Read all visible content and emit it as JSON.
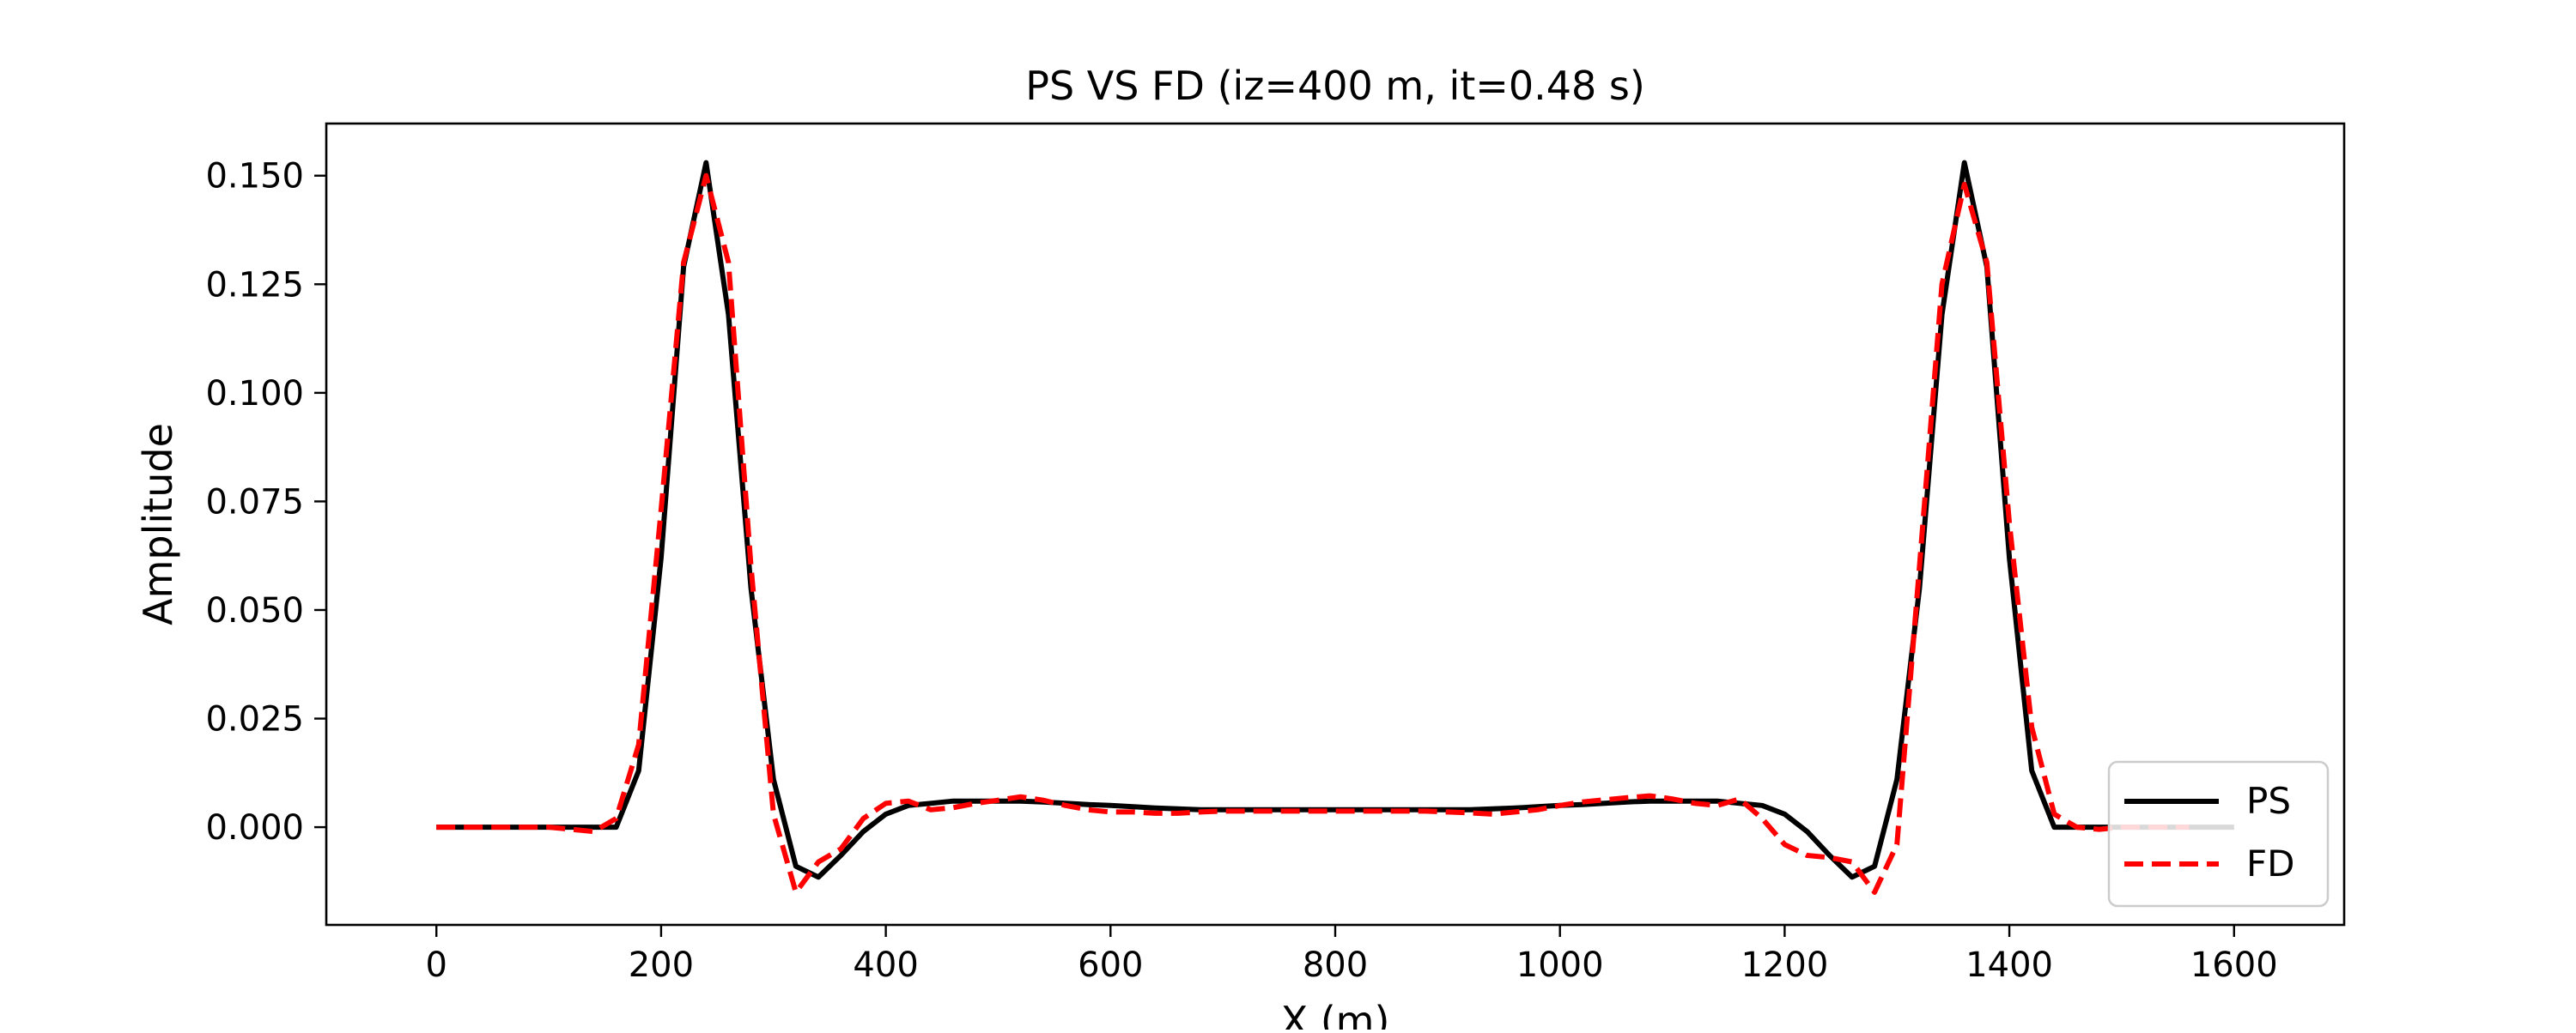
{
  "chart_data": {
    "type": "line",
    "title": "PS VS FD (iz=400 m, it=0.48 s)",
    "xlabel": "X (m)",
    "ylabel": "Amplitude",
    "xlim": [
      -98,
      1698
    ],
    "ylim": [
      -0.0225,
      0.162
    ],
    "xticks": [
      0,
      200,
      400,
      600,
      800,
      1000,
      1200,
      1400,
      1600
    ],
    "yticks": [
      0.0,
      0.025,
      0.05,
      0.075,
      0.1,
      0.125,
      0.15
    ],
    "xtick_labels": [
      "0",
      "200",
      "400",
      "600",
      "800",
      "1000",
      "1200",
      "1400",
      "1600"
    ],
    "ytick_labels": [
      "0.000",
      "0.025",
      "0.050",
      "0.075",
      "0.100",
      "0.125",
      "0.150"
    ],
    "grid": false,
    "legend_position": "bottom-right",
    "series": [
      {
        "name": "PS",
        "color": "#000000",
        "style": "solid",
        "x": [
          0,
          20,
          40,
          60,
          80,
          100,
          120,
          140,
          160,
          180,
          200,
          220,
          240,
          260,
          280,
          300,
          320,
          340,
          360,
          380,
          400,
          420,
          440,
          460,
          480,
          500,
          520,
          540,
          560,
          580,
          600,
          620,
          640,
          660,
          680,
          700,
          720,
          740,
          760,
          780,
          800,
          820,
          840,
          860,
          880,
          900,
          920,
          940,
          960,
          980,
          1000,
          1020,
          1040,
          1060,
          1080,
          1100,
          1120,
          1140,
          1160,
          1180,
          1200,
          1220,
          1240,
          1260,
          1280,
          1300,
          1320,
          1340,
          1360,
          1380,
          1400,
          1420,
          1440,
          1460,
          1480,
          1500,
          1520,
          1540,
          1560,
          1580,
          1600
        ],
        "y": [
          0.0,
          0.0,
          0.0,
          0.0,
          0.0,
          0.0,
          0.0,
          0.0,
          0.0,
          0.013,
          0.062,
          0.129,
          0.153,
          0.118,
          0.055,
          0.011,
          -0.009,
          -0.0115,
          -0.0065,
          -0.001,
          0.003,
          0.005,
          0.0055,
          0.006,
          0.006,
          0.006,
          0.006,
          0.0058,
          0.0055,
          0.0052,
          0.005,
          0.0047,
          0.0044,
          0.0042,
          0.004,
          0.004,
          0.004,
          0.004,
          0.004,
          0.004,
          0.004,
          0.004,
          0.004,
          0.004,
          0.004,
          0.004,
          0.004,
          0.0042,
          0.0044,
          0.0047,
          0.005,
          0.0052,
          0.0055,
          0.0058,
          0.006,
          0.006,
          0.006,
          0.006,
          0.0055,
          0.005,
          0.003,
          -0.001,
          -0.0065,
          -0.0115,
          -0.009,
          0.011,
          0.055,
          0.118,
          0.153,
          0.129,
          0.062,
          0.013,
          0.0,
          0.0,
          0.0,
          0.0,
          0.0,
          0.0,
          0.0,
          0.0,
          0.0
        ]
      },
      {
        "name": "FD",
        "color": "#ff0000",
        "style": "dashed",
        "x": [
          0,
          20,
          40,
          60,
          80,
          100,
          120,
          140,
          160,
          180,
          200,
          220,
          240,
          260,
          280,
          300,
          320,
          340,
          360,
          380,
          400,
          420,
          440,
          460,
          480,
          500,
          520,
          540,
          560,
          580,
          600,
          620,
          640,
          660,
          680,
          700,
          720,
          740,
          760,
          780,
          800,
          820,
          840,
          860,
          880,
          900,
          920,
          940,
          960,
          980,
          1000,
          1020,
          1040,
          1060,
          1080,
          1100,
          1120,
          1140,
          1160,
          1180,
          1200,
          1220,
          1240,
          1260,
          1280,
          1300,
          1320,
          1340,
          1360,
          1380,
          1400,
          1420,
          1440,
          1460,
          1480,
          1500,
          1520,
          1540,
          1560
        ],
        "y": [
          0.0,
          0.0,
          0.0,
          0.0,
          0.0,
          0.0,
          -0.0005,
          -0.001,
          0.002,
          0.019,
          0.073,
          0.13,
          0.15,
          0.13,
          0.06,
          0.003,
          -0.015,
          -0.008,
          -0.005,
          0.002,
          0.0055,
          0.006,
          0.004,
          0.0045,
          0.0055,
          0.0062,
          0.007,
          0.0062,
          0.005,
          0.004,
          0.0035,
          0.0035,
          0.0032,
          0.0032,
          0.0035,
          0.0037,
          0.0037,
          0.0037,
          0.0037,
          0.0037,
          0.0037,
          0.0037,
          0.0037,
          0.0037,
          0.0037,
          0.0035,
          0.0033,
          0.003,
          0.0035,
          0.004,
          0.005,
          0.0058,
          0.0063,
          0.0068,
          0.0072,
          0.0065,
          0.0055,
          0.005,
          0.0065,
          0.002,
          -0.004,
          -0.0065,
          -0.007,
          -0.008,
          -0.015,
          -0.004,
          0.06,
          0.125,
          0.148,
          0.13,
          0.07,
          0.023,
          0.003,
          0.0,
          -0.0005,
          0.0,
          0.0,
          0.0,
          0.0
        ]
      }
    ]
  }
}
